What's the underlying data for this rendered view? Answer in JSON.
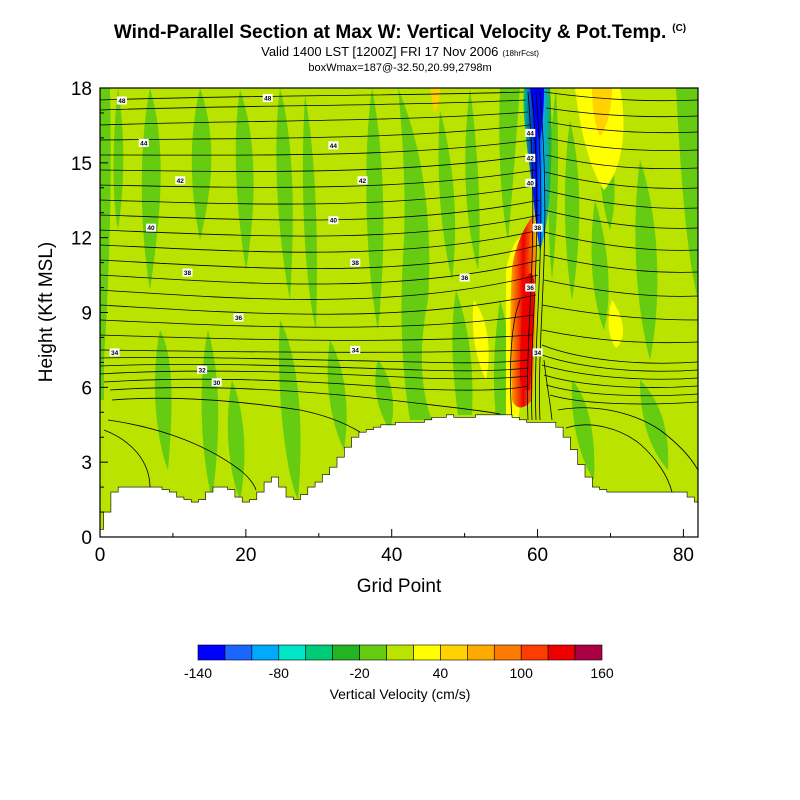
{
  "header": {
    "title": "Wind-Parallel Section at Max W: Vertical Velocity & Pot.Temp.",
    "copyright": "(C)",
    "valid_line": "Valid 1400 LST [1200Z] FRI 17 Nov 2006",
    "forecast_hour": "(18hrFcst)",
    "max_box": "boxWmax=187@-32.50,20.99,2798m"
  },
  "chart_data": {
    "type": "contour-section",
    "title": "Wind-Parallel Section at Max W: Vertical Velocity & Pot.Temp.",
    "xlabel": "Grid Point",
    "ylabel": "Height (Kft MSL)",
    "xlim": [
      0,
      82
    ],
    "ylim": [
      0,
      18
    ],
    "xticks": [
      0,
      20,
      40,
      60,
      80
    ],
    "yticks": [
      0,
      3,
      6,
      9,
      12,
      15,
      18
    ],
    "colorbar": {
      "label": "Vertical Velocity (cm/s)",
      "tick_labels": [
        "-140",
        "-80",
        "-20",
        "40",
        "100",
        "160"
      ],
      "tick_values": [
        -140,
        -80,
        -20,
        40,
        100,
        160
      ],
      "levels": [
        -140,
        -120,
        -100,
        -80,
        -60,
        -40,
        -20,
        0,
        20,
        40,
        60,
        80,
        100,
        120,
        140,
        160
      ],
      "colors": [
        "#0000ff",
        "#1a66ff",
        "#00aaff",
        "#00e6c8",
        "#00cc77",
        "#22b422",
        "#66cc11",
        "#bbe300",
        "#ffff00",
        "#ffd200",
        "#ffaa00",
        "#ff7a00",
        "#ff3c00",
        "#ee0000",
        "#aa0044"
      ]
    },
    "terrain_kft": [
      0.3,
      1.0,
      1.8,
      2.0,
      2.0,
      2.0,
      2.0,
      2.0,
      2.0,
      1.9,
      1.8,
      1.6,
      1.5,
      1.4,
      1.5,
      1.8,
      2.0,
      2.0,
      1.9,
      1.6,
      1.4,
      1.5,
      1.8,
      2.2,
      2.4,
      2.0,
      1.6,
      1.5,
      1.7,
      2.0,
      2.2,
      2.5,
      2.8,
      3.2,
      3.6,
      4.0,
      4.2,
      4.3,
      4.4,
      4.5,
      4.5,
      4.6,
      4.6,
      4.6,
      4.6,
      4.7,
      4.8,
      4.8,
      4.9,
      4.8,
      4.8,
      4.8,
      4.9,
      4.9,
      4.9,
      4.9,
      4.9,
      4.8,
      4.7,
      4.6,
      4.6,
      4.6,
      4.6,
      4.4,
      4.0,
      3.5,
      2.9,
      2.4,
      2.0,
      1.9,
      1.8,
      1.8,
      1.8,
      1.8,
      1.8,
      1.8,
      1.8,
      1.8,
      1.8,
      1.8,
      1.8,
      1.6,
      1.4
    ],
    "contour_labels": [
      {
        "text": "48",
        "x": 3,
        "y": 17.5
      },
      {
        "text": "48",
        "x": 23,
        "y": 17.6
      },
      {
        "text": "44",
        "x": 6,
        "y": 15.8
      },
      {
        "text": "44",
        "x": 32,
        "y": 15.7
      },
      {
        "text": "42",
        "x": 11,
        "y": 14.3
      },
      {
        "text": "42",
        "x": 36,
        "y": 14.3
      },
      {
        "text": "40",
        "x": 7,
        "y": 12.4
      },
      {
        "text": "40",
        "x": 32,
        "y": 12.7
      },
      {
        "text": "38",
        "x": 12,
        "y": 10.6
      },
      {
        "text": "38",
        "x": 35,
        "y": 11.0
      },
      {
        "text": "36",
        "x": 50,
        "y": 10.4
      },
      {
        "text": "36",
        "x": 19,
        "y": 8.8
      },
      {
        "text": "34",
        "x": 2,
        "y": 7.4
      },
      {
        "text": "34",
        "x": 35,
        "y": 7.5
      },
      {
        "text": "32",
        "x": 14,
        "y": 6.7
      },
      {
        "text": "30",
        "x": 16,
        "y": 6.2
      },
      {
        "text": "44",
        "x": 59,
        "y": 16.2
      },
      {
        "text": "42",
        "x": 59,
        "y": 15.2
      },
      {
        "text": "40",
        "x": 59,
        "y": 14.2
      },
      {
        "text": "38",
        "x": 60,
        "y": 12.4
      },
      {
        "text": "36",
        "x": 59,
        "y": 10.0
      },
      {
        "text": "34",
        "x": 60,
        "y": 7.4
      }
    ]
  }
}
